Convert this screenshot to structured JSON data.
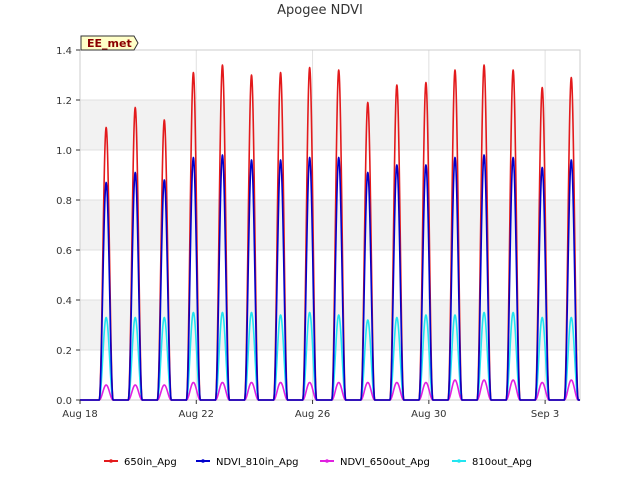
{
  "chart_data": {
    "type": "line",
    "title": "Apogee NDVI",
    "badge": "EE_met",
    "xlabel": "",
    "ylabel": "",
    "x_start": "Aug 18",
    "x_end": "Sep 4",
    "xlim": [
      0,
      17.2
    ],
    "ylim": [
      0,
      1.4
    ],
    "x_ticks": [
      {
        "label": "Aug 18",
        "value": 0
      },
      {
        "label": "Aug 22",
        "value": 4
      },
      {
        "label": "Aug 26",
        "value": 8
      },
      {
        "label": "Aug 30",
        "value": 12
      },
      {
        "label": "Sep 3",
        "value": 16
      }
    ],
    "y_ticks": [
      "0.0",
      "0.2",
      "0.4",
      "0.6",
      "0.8",
      "1.0",
      "1.2",
      "1.4"
    ],
    "y_tick_values": [
      0,
      0.2,
      0.4,
      0.6,
      0.8,
      1.0,
      1.2,
      1.4
    ],
    "grid": true,
    "bands": "alternating grey horizontal bands",
    "legend_position": "bottom",
    "daily_peak_day_offsets": [
      0.9,
      1.9,
      2.9,
      3.9,
      4.9,
      5.9,
      6.9,
      7.9,
      8.9,
      9.9,
      10.9,
      11.9,
      12.9,
      13.9,
      14.9,
      15.9,
      16.9
    ],
    "series": [
      {
        "name": "650in_Apg",
        "color": "#e31a1c",
        "peaks": [
          1.09,
          1.17,
          1.12,
          1.31,
          1.34,
          1.3,
          1.31,
          1.33,
          1.32,
          1.19,
          1.26,
          1.27,
          1.32,
          1.34,
          1.32,
          1.25,
          1.29
        ]
      },
      {
        "name": "NDVI_810in_Apg",
        "color": "#0000cc",
        "peaks": [
          0.87,
          0.91,
          0.88,
          0.97,
          0.98,
          0.96,
          0.96,
          0.97,
          0.97,
          0.91,
          0.94,
          0.94,
          0.97,
          0.98,
          0.97,
          0.93,
          0.96
        ]
      },
      {
        "name": "NDVI_650out_Apg",
        "color": "#e020e0",
        "peaks": [
          0.06,
          0.06,
          0.06,
          0.07,
          0.07,
          0.07,
          0.07,
          0.07,
          0.07,
          0.07,
          0.07,
          0.07,
          0.08,
          0.08,
          0.08,
          0.07,
          0.08
        ]
      },
      {
        "name": "810out_Apg",
        "color": "#22e5f0",
        "peaks": [
          0.33,
          0.33,
          0.33,
          0.35,
          0.35,
          0.35,
          0.34,
          0.35,
          0.34,
          0.32,
          0.33,
          0.34,
          0.34,
          0.35,
          0.35,
          0.33,
          0.33
        ]
      }
    ]
  }
}
